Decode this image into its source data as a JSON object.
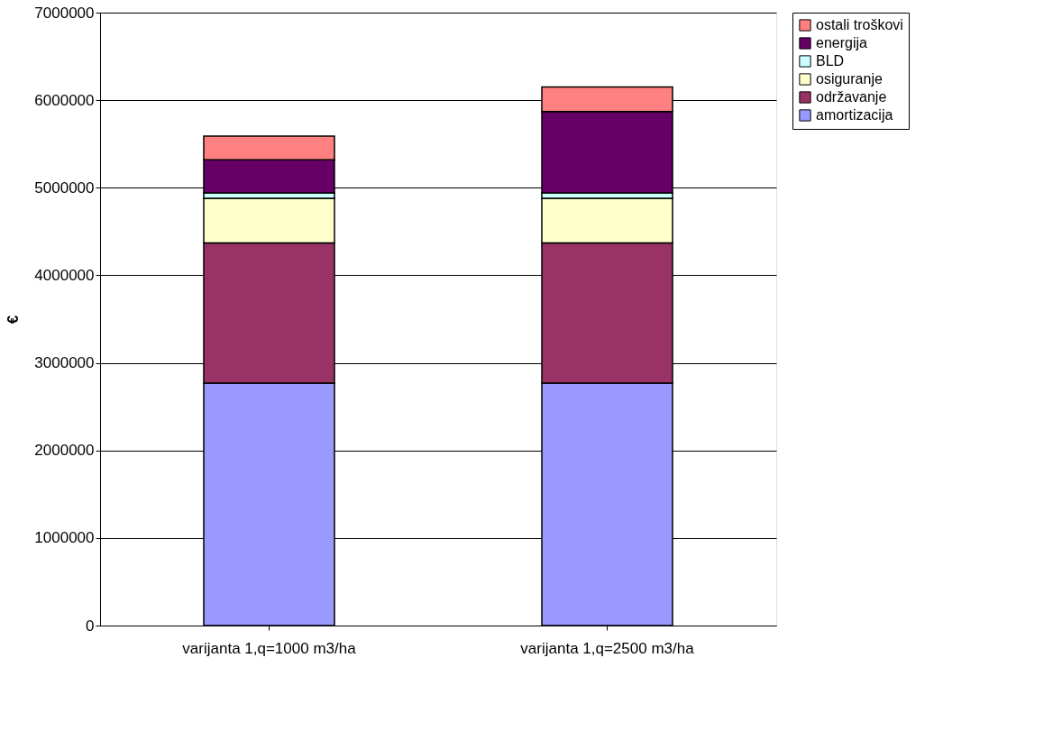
{
  "chart_data": {
    "type": "bar",
    "stacked": true,
    "ylabel": "€",
    "categories": [
      "varijanta 1,q=1000 m3/ha",
      "varijanta 1,q=2500 m3/ha"
    ],
    "series": [
      {
        "name": "amortizacija",
        "color": "#9999ff",
        "values": [
          2770000,
          2770000
        ]
      },
      {
        "name": "održavanje",
        "color": "#993366",
        "values": [
          1600000,
          1600000
        ]
      },
      {
        "name": "osiguranje",
        "color": "#ffffcc",
        "values": [
          510000,
          510000
        ]
      },
      {
        "name": "BLD",
        "color": "#ccffff",
        "values": [
          60000,
          60000
        ]
      },
      {
        "name": "energija",
        "color": "#660066",
        "values": [
          380000,
          930000
        ]
      },
      {
        "name": "ostali troškovi",
        "color": "#ff8080",
        "values": [
          270000,
          280000
        ]
      }
    ],
    "ylim": [
      0,
      7000000
    ],
    "yticks": [
      0,
      1000000,
      2000000,
      3000000,
      4000000,
      5000000,
      6000000,
      7000000
    ],
    "grid": "y",
    "legend": "right"
  }
}
